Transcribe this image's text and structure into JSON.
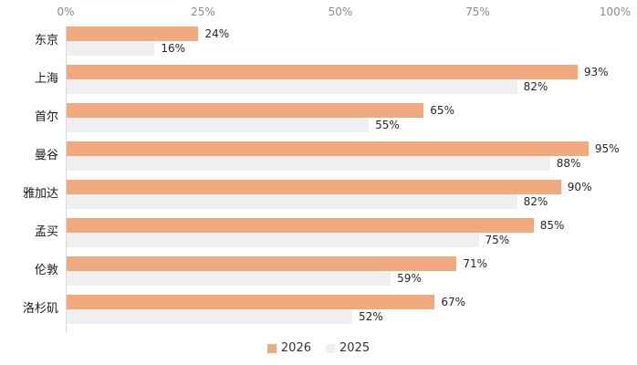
{
  "chart_data": {
    "type": "bar",
    "orientation": "horizontal",
    "categories": [
      "东京",
      "上海",
      "首尔",
      "曼谷",
      "雅加达",
      "孟买",
      "伦敦",
      "洛杉矶"
    ],
    "series": [
      {
        "name": "2026",
        "color": "#F2A97D",
        "values": [
          24,
          93,
          65,
          95,
          90,
          85,
          71,
          67
        ]
      },
      {
        "name": "2025",
        "color": "#EFEFEF",
        "values": [
          16,
          82,
          55,
          88,
          82,
          75,
          59,
          52
        ]
      }
    ],
    "x_ticks": [
      "0%",
      "25%",
      "50%",
      "75%",
      "100%"
    ],
    "xlim": [
      0,
      100
    ],
    "value_suffix": "%",
    "grid": false,
    "legend_position": "bottom",
    "axis_line_color": "#D9D9D9",
    "tick_label_color": "#8C8C8C",
    "data_label_color": "#262626",
    "category_label_color": "#1A1A1A",
    "background_color": "#FFFFFF"
  }
}
